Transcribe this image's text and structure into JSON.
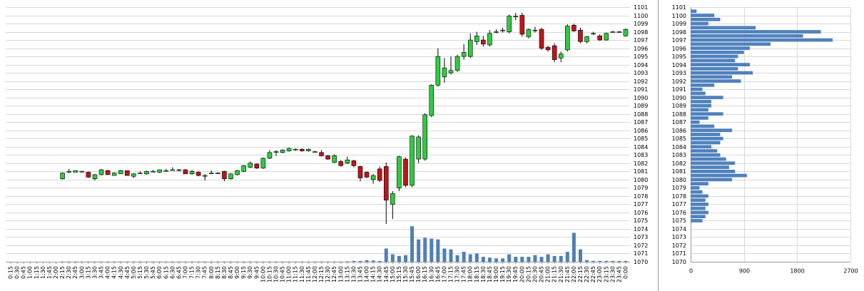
{
  "chart_data": [
    {
      "type": "candlestick",
      "categories": [
        "0:15",
        "0:30",
        "0:45",
        "1:00",
        "1:15",
        "1:30",
        "1:45",
        "2:00",
        "2:15",
        "2:30",
        "2:45",
        "3:00",
        "3:15",
        "3:30",
        "3:45",
        "4:00",
        "4:15",
        "4:30",
        "4:45",
        "5:00",
        "5:15",
        "5:30",
        "5:45",
        "6:00",
        "6:15",
        "6:30",
        "6:45",
        "7:00",
        "7:15",
        "7:30",
        "7:45",
        "8:00",
        "8:15",
        "8:30",
        "8:45",
        "9:00",
        "9:15",
        "9:30",
        "9:45",
        "10:00",
        "10:15",
        "10:30",
        "10:45",
        "11:00",
        "11:15",
        "11:30",
        "11:45",
        "12:00",
        "12:15",
        "12:30",
        "12:45",
        "13:00",
        "13:15",
        "13:30",
        "13:45",
        "14:00",
        "14:15",
        "14:30",
        "14:45",
        "15:00",
        "15:15",
        "15:30",
        "15:45",
        "16:00",
        "16:15",
        "16:30",
        "16:45",
        "17:00",
        "17:15",
        "17:30",
        "17:45",
        "18:00",
        "18:15",
        "18:30",
        "18:45",
        "19:00",
        "19:15",
        "19:30",
        "19:45",
        "20:00",
        "20:15",
        "20:30",
        "20:45",
        "21:00",
        "21:15",
        "21:30",
        "21:45",
        "22:00",
        "22:15",
        "22:30",
        "22:45",
        "23:00",
        "23:15",
        "23:30",
        "23:45",
        "0:00"
      ],
      "open": [
        null,
        null,
        null,
        null,
        null,
        null,
        null,
        null,
        1080.1,
        1080.9,
        1080.9,
        1081.0,
        1080.9,
        1080.1,
        1080.6,
        1081.1,
        1080.5,
        1080.7,
        1081.1,
        1080.4,
        1080.8,
        1080.7,
        1081.0,
        1080.9,
        1081.1,
        1081.2,
        1081.2,
        1081.2,
        1080.7,
        1080.9,
        1080.5,
        1080.8,
        1080.8,
        1081.0,
        1080.1,
        1080.6,
        1081.0,
        1081.5,
        1081.9,
        1081.4,
        1082.6,
        1083.4,
        1083.3,
        1083.5,
        1083.7,
        1083.7,
        1083.5,
        1083.4,
        1083.3,
        1082.9,
        1082.1,
        1082.2,
        1082.0,
        1082.3,
        1081.6,
        1080.9,
        1080.0,
        1081.3,
        1081.6,
        1077.0,
        1079.0,
        1082.5,
        1079.3,
        1082.5,
        1082.5,
        1087.8,
        1091.5,
        1092.5,
        1093.0,
        1093.3,
        1095.0,
        1095.0,
        1096.8,
        1097.0,
        1096.4,
        1098.0,
        1098.2,
        1098.0,
        1099.9,
        1100.0,
        1097.4,
        1098.2,
        1098.3,
        1096.1,
        1096.3,
        1094.8,
        1095.8,
        1098.8,
        1098.2,
        1096.8,
        1097.8,
        1097.5,
        1097.0,
        1098.0,
        1098.0,
        1097.5
      ],
      "high": [
        null,
        null,
        null,
        null,
        null,
        null,
        null,
        null,
        1080.9,
        1081.3,
        1081.1,
        1081.1,
        1081.0,
        1080.7,
        1081.3,
        1081.2,
        1080.9,
        1081.2,
        1081.1,
        1080.8,
        1081.0,
        1081.1,
        1081.2,
        1081.2,
        1081.3,
        1081.5,
        1081.3,
        1081.3,
        1081.2,
        1081.0,
        1080.7,
        1081.1,
        1080.9,
        1081.1,
        1080.8,
        1081.2,
        1081.8,
        1082.2,
        1082.0,
        1082.7,
        1083.6,
        1083.6,
        1083.7,
        1083.9,
        1083.8,
        1083.8,
        1083.8,
        1083.5,
        1083.6,
        1083.0,
        1083.1,
        1082.4,
        1082.8,
        1082.4,
        1081.7,
        1081.0,
        1080.7,
        1081.6,
        1082.1,
        1078.6,
        1082.9,
        1082.7,
        1085.4,
        1085.4,
        1088.1,
        1091.6,
        1096.0,
        1094.8,
        1095.0,
        1095.2,
        1096.5,
        1097.8,
        1098.0,
        1097.5,
        1098.2,
        1098.3,
        1098.5,
        1100.1,
        1100.3,
        1100.3,
        1098.4,
        1098.6,
        1098.5,
        1096.3,
        1096.6,
        1095.6,
        1098.9,
        1099.0,
        1098.5,
        1097.5,
        1098.0,
        1097.7,
        1097.9,
        1098.1,
        1098.1,
        1098.4
      ],
      "low": [
        null,
        null,
        null,
        null,
        null,
        null,
        null,
        null,
        1080.0,
        1080.8,
        1080.9,
        1080.9,
        1080.2,
        1079.9,
        1080.5,
        1080.6,
        1080.5,
        1080.7,
        1080.5,
        1080.2,
        1080.7,
        1080.6,
        1080.9,
        1080.8,
        1081.0,
        1081.1,
        1081.0,
        1080.7,
        1080.6,
        1080.4,
        1079.9,
        1080.7,
        1080.7,
        1079.8,
        1080.0,
        1080.5,
        1080.9,
        1081.4,
        1081.3,
        1081.3,
        1082.5,
        1082.9,
        1083.2,
        1083.4,
        1083.5,
        1083.4,
        1083.4,
        1083.3,
        1082.8,
        1082.4,
        1082.0,
        1081.6,
        1081.9,
        1081.5,
        1079.8,
        1080.2,
        1079.5,
        1079.7,
        1074.6,
        1075.2,
        1078.6,
        1079.1,
        1079.1,
        1082.0,
        1082.3,
        1087.6,
        1091.3,
        1091.8,
        1092.8,
        1093.1,
        1094.6,
        1094.8,
        1096.4,
        1096.2,
        1096.2,
        1097.8,
        1097.9,
        1097.8,
        1099.4,
        1097.4,
        1097.2,
        1097.9,
        1095.8,
        1095.6,
        1094.3,
        1094.3,
        1095.6,
        1098.0,
        1096.6,
        1096.6,
        1097.6,
        1096.9,
        1096.9,
        1097.9,
        1097.9,
        1097.4
      ],
      "close": [
        null,
        null,
        null,
        null,
        null,
        null,
        null,
        null,
        1080.8,
        1081.0,
        1081.1,
        1081.0,
        1080.3,
        1080.6,
        1081.2,
        1080.6,
        1080.8,
        1081.1,
        1080.5,
        1080.7,
        1080.8,
        1081.0,
        1081.0,
        1081.2,
        1081.1,
        1081.2,
        1081.2,
        1080.7,
        1081.0,
        1080.5,
        1080.5,
        1080.8,
        1080.8,
        1080.1,
        1080.7,
        1081.1,
        1081.7,
        1082.0,
        1081.4,
        1082.6,
        1083.3,
        1083.4,
        1083.6,
        1083.8,
        1083.7,
        1083.5,
        1083.7,
        1083.4,
        1082.9,
        1082.5,
        1082.9,
        1081.7,
        1082.4,
        1081.7,
        1080.2,
        1080.3,
        1080.5,
        1079.9,
        1077.5,
        1078.3,
        1082.8,
        1079.3,
        1085.3,
        1085.2,
        1087.9,
        1091.5,
        1095.0,
        1093.6,
        1093.3,
        1095.0,
        1095.5,
        1097.0,
        1097.5,
        1096.5,
        1097.8,
        1098.0,
        1098.2,
        1099.9,
        1099.9,
        1097.7,
        1098.3,
        1098.2,
        1096.0,
        1095.8,
        1094.6,
        1095.3,
        1098.7,
        1098.1,
        1096.8,
        1097.4,
        1097.8,
        1097.0,
        1097.8,
        1098.0,
        1098.0,
        1098.3
      ],
      "volume": [
        null,
        null,
        null,
        null,
        null,
        null,
        null,
        null,
        30,
        30,
        30,
        30,
        30,
        30,
        30,
        30,
        30,
        30,
        30,
        30,
        30,
        30,
        30,
        30,
        30,
        30,
        30,
        30,
        30,
        30,
        30,
        30,
        30,
        30,
        30,
        30,
        30,
        30,
        30,
        30,
        30,
        30,
        30,
        30,
        30,
        30,
        30,
        30,
        30,
        30,
        30,
        30,
        50,
        100,
        100,
        200,
        150,
        100,
        1600,
        900,
        700,
        800,
        4300,
        2700,
        2900,
        2800,
        2700,
        1600,
        1500,
        800,
        1200,
        900,
        1000,
        600,
        500,
        400,
        400,
        900,
        600,
        600,
        600,
        800,
        600,
        900,
        700,
        700,
        1200,
        3500,
        1500,
        200,
        100,
        100,
        100,
        100,
        100,
        100
      ],
      "volume_lim": [
        0,
        5000
      ],
      "ylim": [
        1070,
        1101
      ],
      "yticks": [
        1070,
        1071,
        1072,
        1073,
        1074,
        1075,
        1076,
        1077,
        1078,
        1079,
        1080,
        1081,
        1082,
        1083,
        1084,
        1085,
        1086,
        1087,
        1088,
        1089,
        1090,
        1091,
        1092,
        1093,
        1094,
        1095,
        1096,
        1097,
        1098,
        1099,
        1100,
        1101
      ],
      "up_color": "#2ecc40",
      "down_color": "#c0141c",
      "volume_color": "#4f7fb8",
      "grid": true
    },
    {
      "type": "barh",
      "y": [
        1075.0,
        1075.5,
        1076.0,
        1076.5,
        1077.0,
        1077.5,
        1078.0,
        1078.5,
        1079.0,
        1079.5,
        1080.0,
        1080.5,
        1081.0,
        1081.5,
        1082.0,
        1082.5,
        1083.0,
        1083.5,
        1084.0,
        1084.5,
        1085.0,
        1085.5,
        1086.0,
        1086.5,
        1087.0,
        1087.5,
        1088.0,
        1088.5,
        1089.0,
        1089.5,
        1090.0,
        1090.5,
        1091.0,
        1091.5,
        1092.0,
        1092.5,
        1093.0,
        1093.5,
        1094.0,
        1094.5,
        1095.0,
        1095.5,
        1096.0,
        1096.5,
        1097.0,
        1097.5,
        1098.0,
        1098.5,
        1099.0,
        1099.5,
        1100.0,
        1100.5
      ],
      "values": [
        200,
        250,
        300,
        250,
        300,
        250,
        300,
        200,
        150,
        300,
        700,
        950,
        750,
        650,
        750,
        600,
        500,
        450,
        350,
        500,
        550,
        500,
        700,
        400,
        150,
        300,
        550,
        300,
        350,
        350,
        550,
        250,
        200,
        400,
        850,
        700,
        1050,
        800,
        1000,
        750,
        800,
        900,
        1000,
        1350,
        2400,
        1900,
        2200,
        1100,
        300,
        500,
        400,
        100
      ],
      "color": "#4f81bd",
      "ylim": [
        1070,
        1101
      ],
      "yticks": [
        1070,
        1071,
        1072,
        1073,
        1074,
        1075,
        1076,
        1077,
        1078,
        1079,
        1080,
        1081,
        1082,
        1083,
        1084,
        1085,
        1086,
        1087,
        1088,
        1089,
        1090,
        1091,
        1092,
        1093,
        1094,
        1095,
        1096,
        1097,
        1098,
        1099,
        1100,
        1101
      ],
      "xlim": [
        0,
        2700
      ],
      "xticks": [
        0,
        900,
        1800,
        2700
      ],
      "grid": true
    }
  ]
}
